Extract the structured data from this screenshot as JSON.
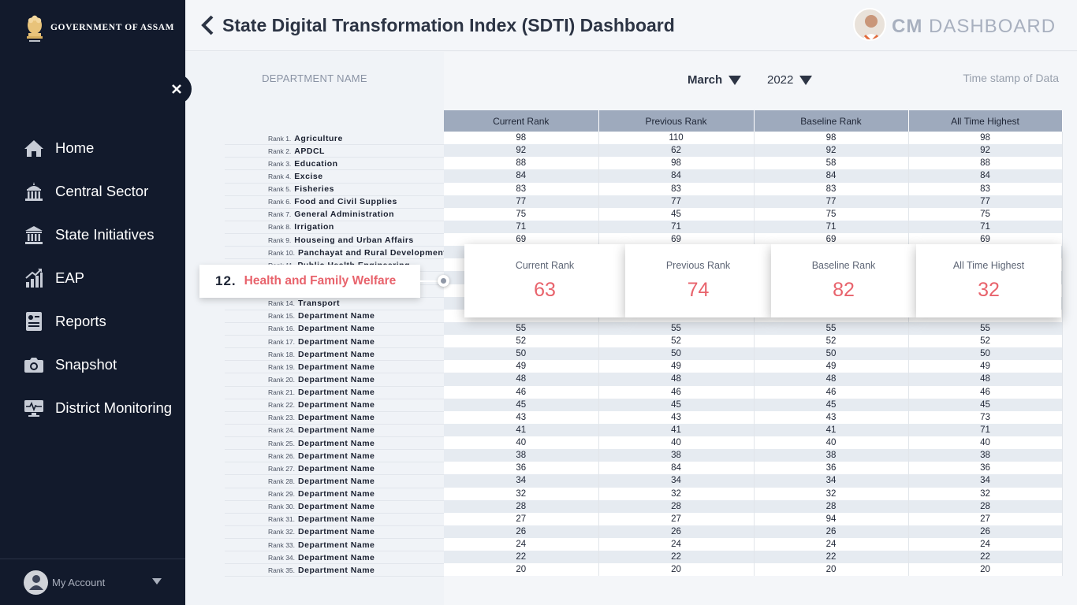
{
  "sidebar": {
    "brand": "GOVERNMENT OF ASSAM",
    "items": [
      {
        "label": "Home",
        "icon": "home-icon"
      },
      {
        "label": "Central Sector",
        "icon": "government-building-icon"
      },
      {
        "label": "State Initiatives",
        "icon": "institution-icon"
      },
      {
        "label": "EAP",
        "icon": "growth-chart-icon"
      },
      {
        "label": "Reports",
        "icon": "report-icon"
      },
      {
        "label": "Snapshot",
        "icon": "camera-icon"
      },
      {
        "label": "District Monitoring",
        "icon": "monitor-icon"
      }
    ],
    "account": "My Account"
  },
  "header": {
    "title": "State Digital Transformation Index (SDTI) Dashboard",
    "brand_strong": "CM",
    "brand_rest": "DASHBOARD"
  },
  "filters": {
    "department_header": "DEPARTMENT NAME",
    "month": "March",
    "year": "2022",
    "timestamp": "Time stamp of Data"
  },
  "table": {
    "columns": [
      "Current Rank",
      "Previous Rank",
      "Baseline Rank",
      "All Time Highest"
    ],
    "rows": [
      {
        "rank": "Rank 1.",
        "name": "Agriculture",
        "values": [
          "98",
          "110",
          "98",
          "98"
        ]
      },
      {
        "rank": "Rank 2.",
        "name": "APDCL",
        "values": [
          "92",
          "62",
          "92",
          "92"
        ]
      },
      {
        "rank": "Rank 3.",
        "name": "Education",
        "values": [
          "88",
          "98",
          "58",
          "88"
        ]
      },
      {
        "rank": "Rank 4.",
        "name": "Excise",
        "values": [
          "84",
          "84",
          "84",
          "84"
        ]
      },
      {
        "rank": "Rank 5.",
        "name": "Fisheries",
        "values": [
          "83",
          "83",
          "83",
          "83"
        ]
      },
      {
        "rank": "Rank 6.",
        "name": "Food and Civil Supplies",
        "values": [
          "77",
          "77",
          "77",
          "77"
        ]
      },
      {
        "rank": "Rank 7.",
        "name": "General Administration",
        "values": [
          "75",
          "45",
          "75",
          "75"
        ]
      },
      {
        "rank": "Rank 8.",
        "name": "Irrigation",
        "values": [
          "71",
          "71",
          "71",
          "71"
        ]
      },
      {
        "rank": "Rank 9.",
        "name": "Houseing and Urban Affairs",
        "values": [
          "69",
          "69",
          "69",
          "69"
        ]
      },
      {
        "rank": "Rank 10.",
        "name": "Panchayat and Rural Development",
        "values": [
          "",
          "",
          "",
          ""
        ]
      },
      {
        "rank": "Rank 11.",
        "name": "Public Health Engineering",
        "values": [
          "",
          "",
          "",
          ""
        ]
      },
      {
        "rank": "",
        "name": "",
        "values": [
          "",
          "",
          "",
          ""
        ]
      },
      {
        "rank": "",
        "name": "",
        "values": [
          "",
          "",
          "",
          ""
        ]
      },
      {
        "rank": "Rank 14.",
        "name": "Transport",
        "values": [
          "",
          "",
          "",
          ""
        ]
      },
      {
        "rank": "Rank 15.",
        "name": "Department Name",
        "values": [
          "",
          "",
          "",
          ""
        ]
      },
      {
        "rank": "Rank 16.",
        "name": "Department Name",
        "values": [
          "55",
          "55",
          "55",
          "55"
        ]
      },
      {
        "rank": "Rank 17.",
        "name": "Department Name",
        "values": [
          "52",
          "52",
          "52",
          "52"
        ]
      },
      {
        "rank": "Rank 18.",
        "name": "Department Name",
        "values": [
          "50",
          "50",
          "50",
          "50"
        ]
      },
      {
        "rank": "Rank 19.",
        "name": "Department Name",
        "values": [
          "49",
          "49",
          "49",
          "49"
        ]
      },
      {
        "rank": "Rank 20.",
        "name": "Department Name",
        "values": [
          "48",
          "48",
          "48",
          "48"
        ]
      },
      {
        "rank": "Rank 21.",
        "name": "Department Name",
        "values": [
          "46",
          "46",
          "46",
          "46"
        ]
      },
      {
        "rank": "Rank 22.",
        "name": "Department Name",
        "values": [
          "45",
          "45",
          "45",
          "45"
        ]
      },
      {
        "rank": "Rank 23.",
        "name": "Department Name",
        "values": [
          "43",
          "43",
          "43",
          "73"
        ]
      },
      {
        "rank": "Rank 24.",
        "name": "Department Name",
        "values": [
          "41",
          "41",
          "41",
          "71"
        ]
      },
      {
        "rank": "Rank 25.",
        "name": "Department Name",
        "values": [
          "40",
          "40",
          "40",
          "40"
        ]
      },
      {
        "rank": "Rank 26.",
        "name": "Department Name",
        "values": [
          "38",
          "38",
          "38",
          "38"
        ]
      },
      {
        "rank": "Rank 27.",
        "name": "Department Name",
        "values": [
          "36",
          "84",
          "36",
          "36"
        ]
      },
      {
        "rank": "Rank 28.",
        "name": "Department Name",
        "values": [
          "34",
          "34",
          "34",
          "34"
        ]
      },
      {
        "rank": "Rank 29.",
        "name": "Department Name",
        "values": [
          "32",
          "32",
          "32",
          "32"
        ]
      },
      {
        "rank": "Rank 30.",
        "name": "Department Name",
        "values": [
          "28",
          "28",
          "28",
          "28"
        ]
      },
      {
        "rank": "Rank 31.",
        "name": "Department Name",
        "values": [
          "27",
          "27",
          "94",
          "27"
        ]
      },
      {
        "rank": "Rank 32.",
        "name": "Department Name",
        "values": [
          "26",
          "26",
          "26",
          "26"
        ]
      },
      {
        "rank": "Rank 33.",
        "name": "Department Name",
        "values": [
          "24",
          "24",
          "24",
          "24"
        ]
      },
      {
        "rank": "Rank 34.",
        "name": "Department Name",
        "values": [
          "22",
          "22",
          "22",
          "22"
        ]
      },
      {
        "rank": "Rank 35.",
        "name": "Department Name",
        "values": [
          "20",
          "20",
          "20",
          "20"
        ]
      }
    ]
  },
  "selected": {
    "number": "12.",
    "name": "Health and Family Welfare",
    "cards": [
      {
        "title": "Current Rank",
        "value": "63"
      },
      {
        "title": "Previous Rank",
        "value": "74"
      },
      {
        "title": "Baseline Rank",
        "value": "82"
      },
      {
        "title": "All Time Highest",
        "value": "32"
      }
    ]
  },
  "colors": {
    "sidebar": "#121a2c",
    "accent": "#e8636c",
    "table_header": "#9eaabd"
  }
}
